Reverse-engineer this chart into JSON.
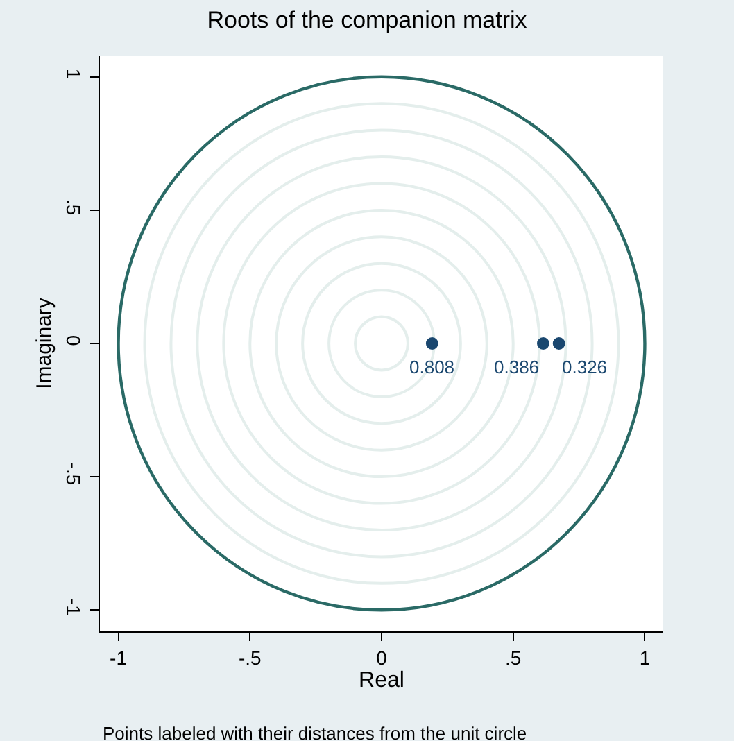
{
  "chart_data": {
    "type": "scatter",
    "title": "Roots of the companion matrix",
    "xlabel": "Real",
    "ylabel": "Imaginary",
    "annotations": [
      "Points labeled with their distances from the unit circle",
      {
        "text": "0.808",
        "x": 0.192,
        "y": 0
      },
      {
        "text": "0.386",
        "x": 0.614,
        "y": 0
      },
      {
        "text": "0.326",
        "x": 0.674,
        "y": 0
      }
    ],
    "xlim": [
      -1.07,
      1.07
    ],
    "ylim": [
      -1.08,
      1.08
    ],
    "xticks": [
      {
        "value": -1,
        "label": "-1"
      },
      {
        "value": -0.5,
        "label": "-.5"
      },
      0,
      {
        "value": 0.5,
        "label": ".5"
      },
      1
    ],
    "yticks": [
      {
        "value": -1,
        "label": "-1"
      },
      {
        "value": -0.5,
        "label": "-.5"
      },
      0,
      {
        "value": 0.5,
        "label": ".5"
      },
      1
    ],
    "marker": "circle",
    "series": [
      {
        "color": "#1a476f",
        "x": [
          0.192,
          0.614,
          0.674
        ],
        "values": [
          0,
          0,
          0
        ]
      }
    ]
  }
}
